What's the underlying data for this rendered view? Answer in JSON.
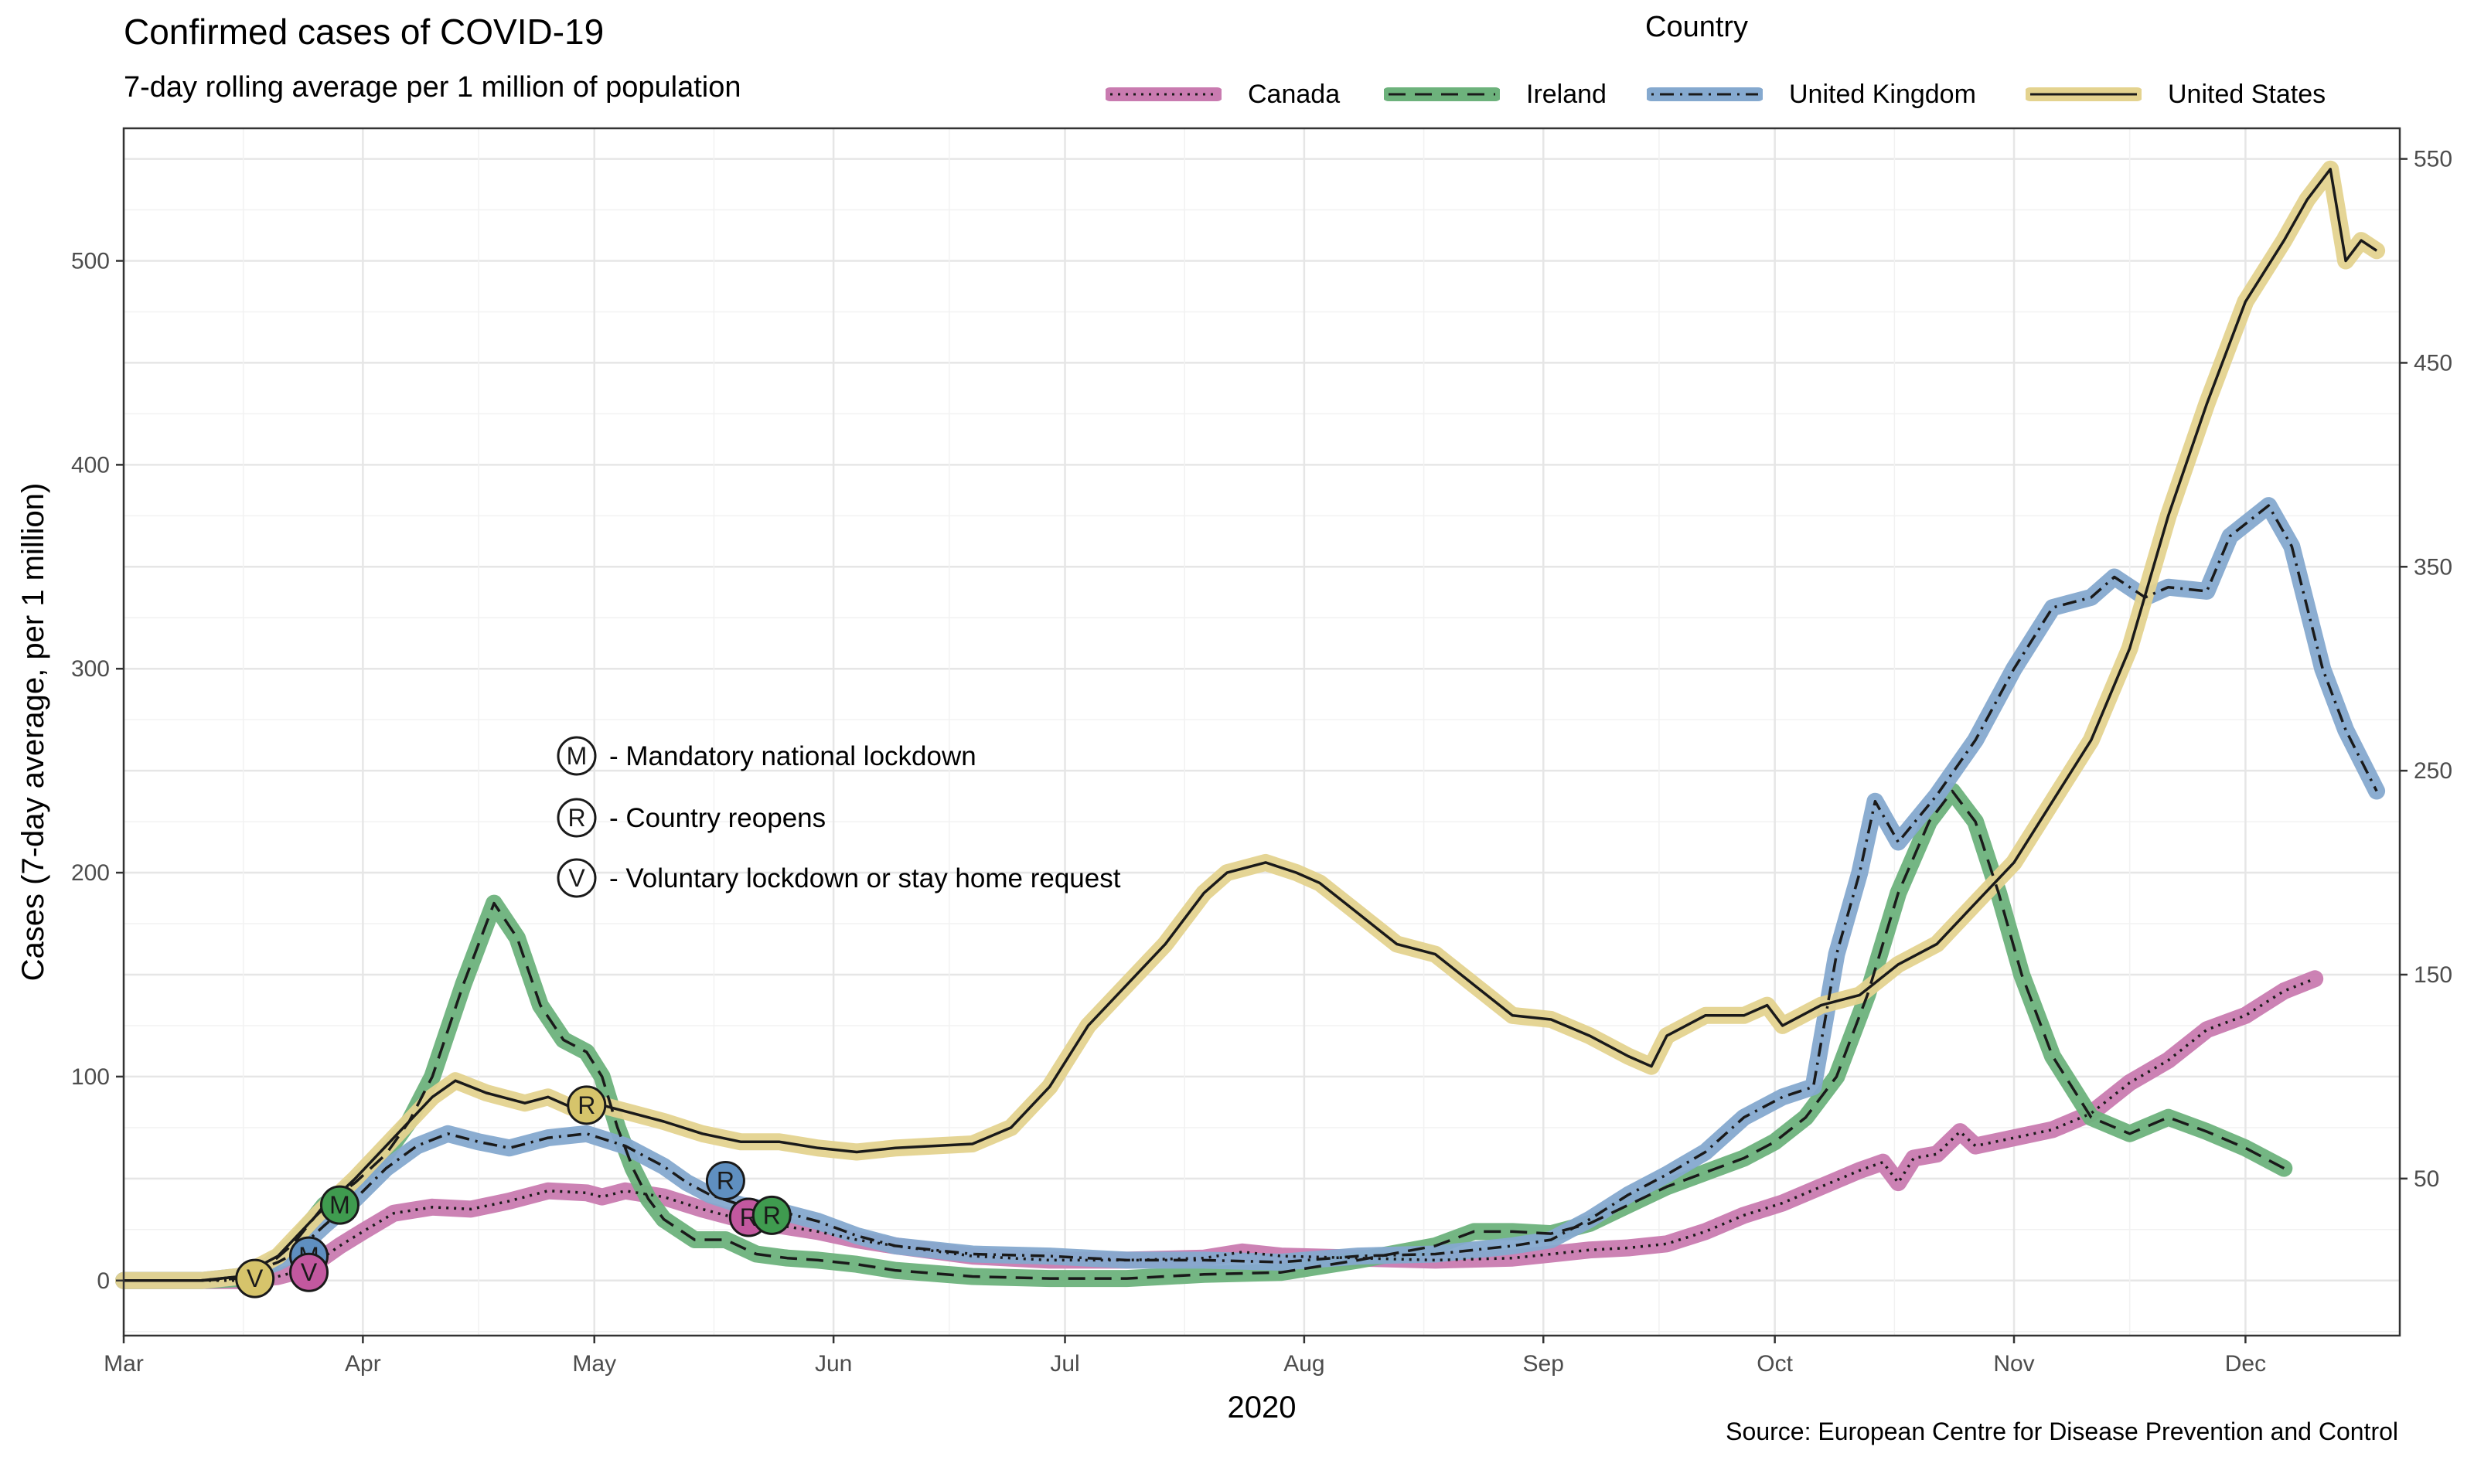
{
  "header": {
    "title": "Confirmed cases of COVID-19",
    "subtitle": "7-day rolling average per 1 million of population"
  },
  "legend": {
    "title": "Country",
    "items": [
      "Canada",
      "Ireland",
      "United Kingdom",
      "United States"
    ]
  },
  "footer": {
    "source": "Source: European Centre for Disease Prevention and Control"
  },
  "chart_data": {
    "type": "line",
    "title": "Confirmed cases of COVID-19",
    "subtitle": "7-day rolling average per 1 million of population",
    "xlabel": "2020",
    "ylabel": "Cases (7-day average, per 1 million)",
    "xlim": [
      0,
      281
    ],
    "ylim": [
      -27,
      565
    ],
    "grid": true,
    "legend_position": "top-right",
    "x_ticks": [
      {
        "day": 0,
        "label": "Mar"
      },
      {
        "day": 31,
        "label": "Apr"
      },
      {
        "day": 61,
        "label": "May"
      },
      {
        "day": 92,
        "label": "Jun"
      },
      {
        "day": 122,
        "label": "Jul"
      },
      {
        "day": 153,
        "label": "Aug"
      },
      {
        "day": 184,
        "label": "Sep"
      },
      {
        "day": 214,
        "label": "Oct"
      },
      {
        "day": 245,
        "label": "Nov"
      },
      {
        "day": 275,
        "label": "Dec"
      }
    ],
    "y_ticks_left": [
      0,
      100,
      200,
      300,
      400,
      500
    ],
    "y_ticks_right": [
      50,
      150,
      250,
      350,
      450,
      550
    ],
    "series": [
      {
        "name": "Canada",
        "color": "#c97bb0",
        "linestyle": "dotted",
        "points": [
          [
            0,
            0
          ],
          [
            10,
            0
          ],
          [
            15,
            0
          ],
          [
            20,
            2
          ],
          [
            22,
            4
          ],
          [
            25,
            9
          ],
          [
            28,
            17
          ],
          [
            31,
            24
          ],
          [
            35,
            33
          ],
          [
            40,
            36
          ],
          [
            45,
            35
          ],
          [
            50,
            39
          ],
          [
            55,
            44
          ],
          [
            60,
            43
          ],
          [
            62,
            41
          ],
          [
            65,
            44
          ],
          [
            70,
            41
          ],
          [
            75,
            35
          ],
          [
            80,
            30
          ],
          [
            85,
            27
          ],
          [
            90,
            24
          ],
          [
            95,
            20
          ],
          [
            100,
            17
          ],
          [
            110,
            12
          ],
          [
            120,
            10
          ],
          [
            130,
            10
          ],
          [
            140,
            11
          ],
          [
            145,
            14
          ],
          [
            150,
            12
          ],
          [
            160,
            11
          ],
          [
            170,
            10
          ],
          [
            180,
            11
          ],
          [
            185,
            13
          ],
          [
            190,
            15
          ],
          [
            195,
            16
          ],
          [
            200,
            18
          ],
          [
            205,
            24
          ],
          [
            210,
            32
          ],
          [
            215,
            38
          ],
          [
            220,
            46
          ],
          [
            225,
            54
          ],
          [
            228,
            58
          ],
          [
            230,
            48
          ],
          [
            232,
            60
          ],
          [
            235,
            62
          ],
          [
            238,
            73
          ],
          [
            240,
            66
          ],
          [
            245,
            70
          ],
          [
            250,
            74
          ],
          [
            255,
            82
          ],
          [
            260,
            97
          ],
          [
            265,
            108
          ],
          [
            270,
            123
          ],
          [
            275,
            130
          ],
          [
            280,
            142
          ],
          [
            284,
            148
          ]
        ]
      },
      {
        "name": "Ireland",
        "color": "#6db27c",
        "linestyle": "dashed",
        "points": [
          [
            0,
            0
          ],
          [
            10,
            0
          ],
          [
            15,
            1
          ],
          [
            18,
            5
          ],
          [
            22,
            18
          ],
          [
            26,
            37
          ],
          [
            30,
            48
          ],
          [
            34,
            62
          ],
          [
            37,
            78
          ],
          [
            40,
            100
          ],
          [
            44,
            145
          ],
          [
            48,
            185
          ],
          [
            51,
            168
          ],
          [
            54,
            135
          ],
          [
            57,
            118
          ],
          [
            60,
            112
          ],
          [
            62,
            100
          ],
          [
            64,
            75
          ],
          [
            66,
            55
          ],
          [
            68,
            40
          ],
          [
            70,
            30
          ],
          [
            74,
            20
          ],
          [
            78,
            20
          ],
          [
            82,
            13
          ],
          [
            86,
            11
          ],
          [
            90,
            10
          ],
          [
            95,
            8
          ],
          [
            100,
            5
          ],
          [
            110,
            2
          ],
          [
            120,
            1
          ],
          [
            130,
            1
          ],
          [
            140,
            3
          ],
          [
            150,
            4
          ],
          [
            160,
            10
          ],
          [
            170,
            17
          ],
          [
            175,
            24
          ],
          [
            180,
            24
          ],
          [
            185,
            23
          ],
          [
            190,
            28
          ],
          [
            195,
            37
          ],
          [
            200,
            46
          ],
          [
            205,
            53
          ],
          [
            210,
            60
          ],
          [
            214,
            68
          ],
          [
            218,
            80
          ],
          [
            222,
            100
          ],
          [
            226,
            140
          ],
          [
            230,
            190
          ],
          [
            234,
            225
          ],
          [
            237,
            240
          ],
          [
            240,
            225
          ],
          [
            243,
            190
          ],
          [
            246,
            150
          ],
          [
            250,
            110
          ],
          [
            255,
            80
          ],
          [
            260,
            72
          ],
          [
            265,
            80
          ],
          [
            270,
            73
          ],
          [
            275,
            65
          ],
          [
            280,
            55
          ]
        ]
      },
      {
        "name": "United Kingdom",
        "color": "#85a9cf",
        "linestyle": "dashdot",
        "points": [
          [
            0,
            0
          ],
          [
            10,
            0
          ],
          [
            15,
            2
          ],
          [
            20,
            9
          ],
          [
            22,
            13
          ],
          [
            26,
            27
          ],
          [
            30,
            40
          ],
          [
            34,
            55
          ],
          [
            38,
            66
          ],
          [
            42,
            72
          ],
          [
            46,
            68
          ],
          [
            50,
            65
          ],
          [
            55,
            70
          ],
          [
            60,
            72
          ],
          [
            65,
            66
          ],
          [
            70,
            56
          ],
          [
            73,
            48
          ],
          [
            76,
            42
          ],
          [
            80,
            37
          ],
          [
            85,
            34
          ],
          [
            90,
            29
          ],
          [
            95,
            22
          ],
          [
            100,
            17
          ],
          [
            110,
            13
          ],
          [
            120,
            12
          ],
          [
            130,
            10
          ],
          [
            140,
            10
          ],
          [
            150,
            9
          ],
          [
            160,
            12
          ],
          [
            170,
            13
          ],
          [
            180,
            17
          ],
          [
            185,
            20
          ],
          [
            190,
            30
          ],
          [
            195,
            42
          ],
          [
            200,
            52
          ],
          [
            205,
            63
          ],
          [
            210,
            80
          ],
          [
            215,
            90
          ],
          [
            219,
            95
          ],
          [
            222,
            160
          ],
          [
            225,
            200
          ],
          [
            227,
            235
          ],
          [
            230,
            215
          ],
          [
            235,
            238
          ],
          [
            240,
            265
          ],
          [
            245,
            300
          ],
          [
            250,
            330
          ],
          [
            255,
            335
          ],
          [
            258,
            345
          ],
          [
            262,
            335
          ],
          [
            265,
            340
          ],
          [
            270,
            338
          ],
          [
            273,
            365
          ],
          [
            278,
            380
          ],
          [
            281,
            360
          ],
          [
            285,
            300
          ],
          [
            288,
            270
          ],
          [
            292,
            240
          ]
        ]
      },
      {
        "name": "United States",
        "color": "#e4d38f",
        "linestyle": "solid",
        "points": [
          [
            0,
            0
          ],
          [
            10,
            0
          ],
          [
            15,
            2
          ],
          [
            20,
            12
          ],
          [
            25,
            32
          ],
          [
            30,
            50
          ],
          [
            35,
            70
          ],
          [
            40,
            90
          ],
          [
            43,
            98
          ],
          [
            47,
            92
          ],
          [
            52,
            87
          ],
          [
            55,
            90
          ],
          [
            58,
            85
          ],
          [
            60,
            88
          ],
          [
            65,
            83
          ],
          [
            70,
            78
          ],
          [
            75,
            72
          ],
          [
            80,
            68
          ],
          [
            85,
            68
          ],
          [
            90,
            65
          ],
          [
            95,
            63
          ],
          [
            100,
            65
          ],
          [
            105,
            66
          ],
          [
            110,
            67
          ],
          [
            115,
            75
          ],
          [
            120,
            95
          ],
          [
            125,
            125
          ],
          [
            130,
            145
          ],
          [
            135,
            165
          ],
          [
            140,
            190
          ],
          [
            143,
            200
          ],
          [
            148,
            205
          ],
          [
            152,
            200
          ],
          [
            155,
            195
          ],
          [
            160,
            180
          ],
          [
            165,
            165
          ],
          [
            170,
            160
          ],
          [
            175,
            145
          ],
          [
            180,
            130
          ],
          [
            185,
            128
          ],
          [
            190,
            120
          ],
          [
            195,
            110
          ],
          [
            198,
            105
          ],
          [
            200,
            120
          ],
          [
            205,
            130
          ],
          [
            210,
            130
          ],
          [
            213,
            135
          ],
          [
            215,
            125
          ],
          [
            220,
            135
          ],
          [
            225,
            140
          ],
          [
            230,
            155
          ],
          [
            235,
            165
          ],
          [
            240,
            185
          ],
          [
            245,
            205
          ],
          [
            250,
            235
          ],
          [
            255,
            265
          ],
          [
            260,
            310
          ],
          [
            265,
            375
          ],
          [
            270,
            430
          ],
          [
            275,
            480
          ],
          [
            280,
            510
          ],
          [
            283,
            530
          ],
          [
            286,
            545
          ],
          [
            288,
            500
          ],
          [
            290,
            510
          ],
          [
            292,
            505
          ]
        ]
      }
    ],
    "events": [
      {
        "country": "United States",
        "code": "V",
        "day": 17,
        "value": 1
      },
      {
        "country": "United Kingdom",
        "code": "M",
        "day": 24,
        "value": 12
      },
      {
        "country": "Canada",
        "code": "V",
        "day": 24,
        "value": 4
      },
      {
        "country": "Ireland",
        "code": "M",
        "day": 28,
        "value": 37
      },
      {
        "country": "United States",
        "code": "R",
        "day": 60,
        "value": 86
      },
      {
        "country": "United Kingdom",
        "code": "R",
        "day": 78,
        "value": 49
      },
      {
        "country": "Canada",
        "code": "R",
        "day": 81,
        "value": 31
      },
      {
        "country": "Ireland",
        "code": "R",
        "day": 84,
        "value": 32
      }
    ],
    "annotations": [
      {
        "code": "M",
        "text": "- Mandatory national lockdown"
      },
      {
        "code": "R",
        "text": "- Country reopens"
      },
      {
        "code": "V",
        "text": "- Voluntary lockdown or stay home request"
      }
    ]
  }
}
